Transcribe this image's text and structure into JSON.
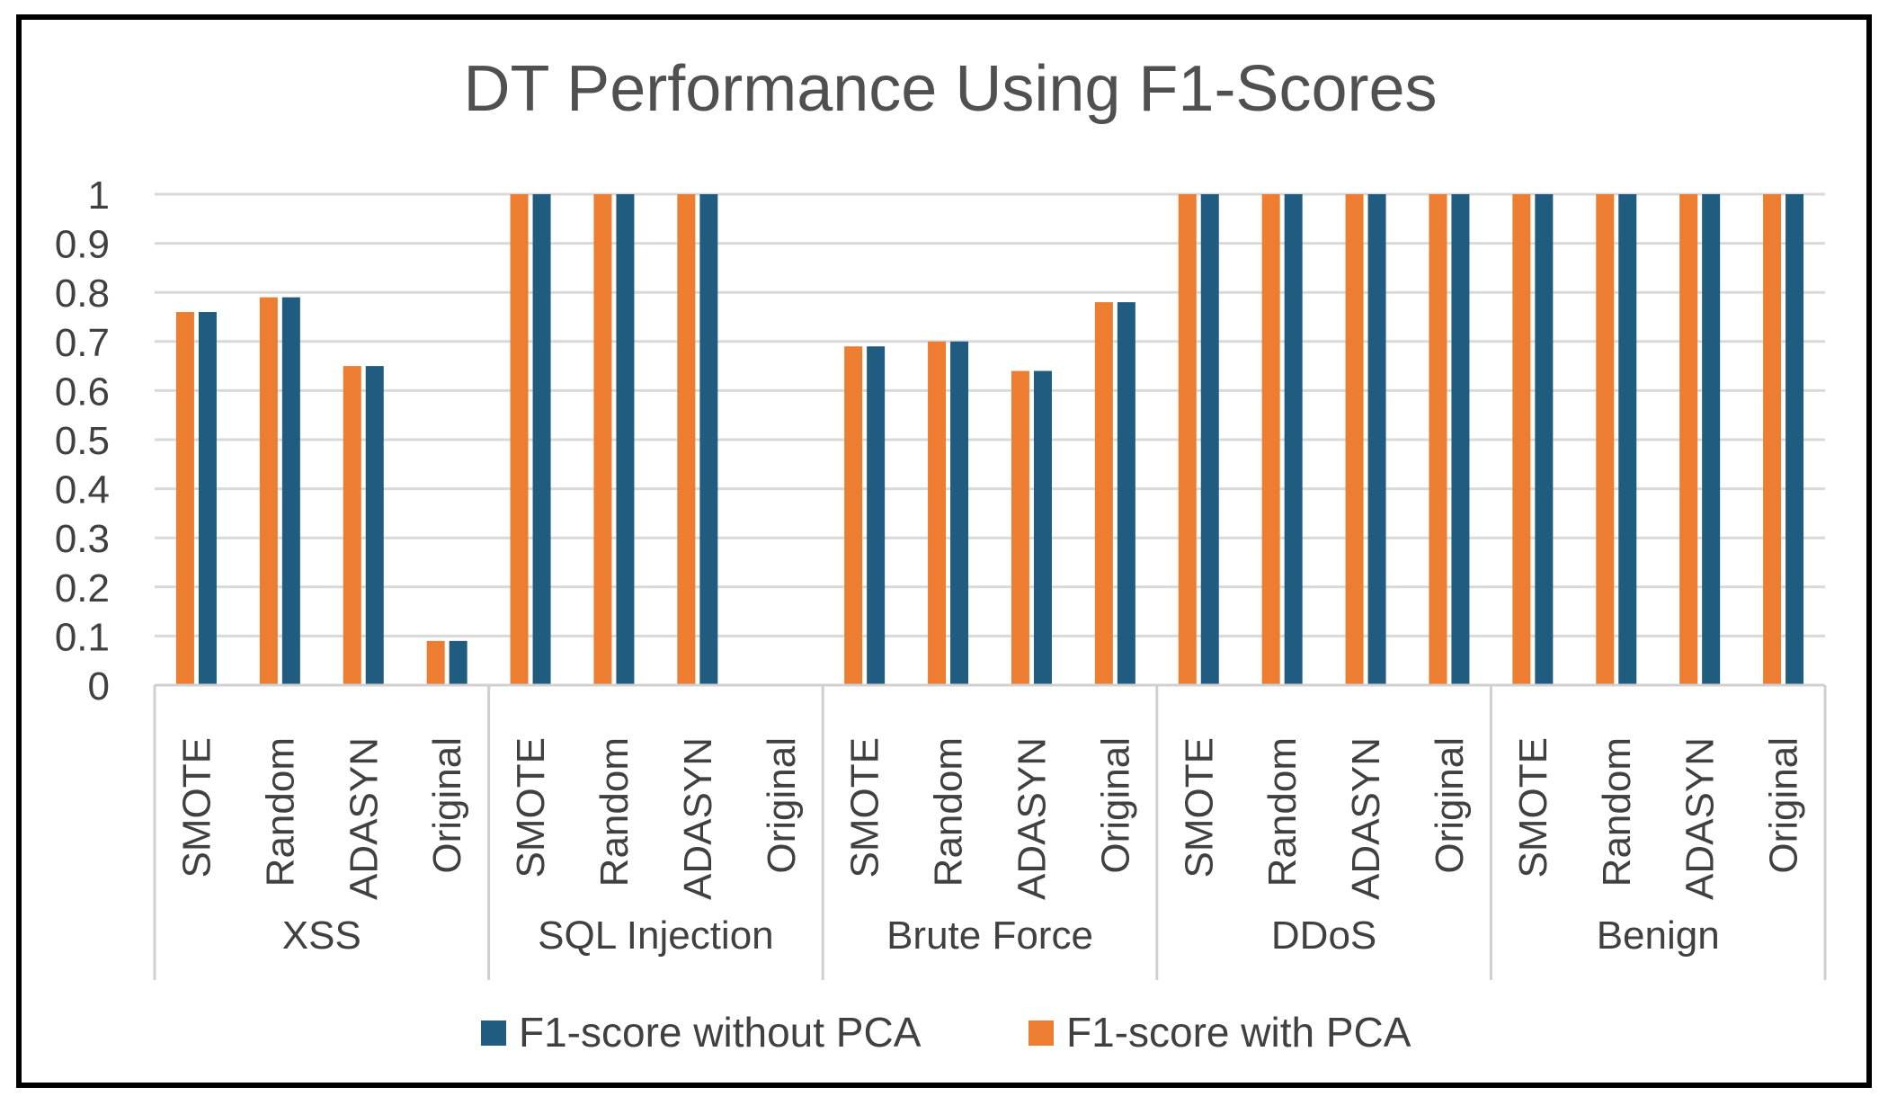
{
  "chart_data": {
    "type": "bar",
    "title": "DT Performance Using F1-Scores",
    "xlabel": "",
    "ylabel": "",
    "ylim": [
      0,
      1
    ],
    "y_ticks": [
      "0",
      "0.1",
      "0.2",
      "0.3",
      "0.4",
      "0.5",
      "0.6",
      "0.7",
      "0.8",
      "0.9",
      "1"
    ],
    "y_tick_values": [
      0,
      0.1,
      0.2,
      0.3,
      0.4,
      0.5,
      0.6,
      0.7,
      0.8,
      0.9,
      1
    ],
    "grid": true,
    "legend_position": "bottom",
    "groups": [
      {
        "label": "XSS",
        "categories": [
          "SMOTE",
          "Random",
          "ADASYN",
          "Original"
        ]
      },
      {
        "label": "SQL Injection",
        "categories": [
          "SMOTE",
          "Random",
          "ADASYN",
          "Original"
        ]
      },
      {
        "label": "Brute Force",
        "categories": [
          "SMOTE",
          "Random",
          "ADASYN",
          "Original"
        ]
      },
      {
        "label": "DDoS",
        "categories": [
          "SMOTE",
          "Random",
          "ADASYN",
          "Original"
        ]
      },
      {
        "label": "Benign",
        "categories": [
          "SMOTE",
          "Random",
          "ADASYN",
          "Original"
        ]
      }
    ],
    "series": [
      {
        "name": "F1-score with PCA",
        "color": "#ED7D31",
        "values": [
          0.76,
          0.79,
          0.65,
          0.09,
          1,
          1,
          1,
          0,
          0.69,
          0.7,
          0.64,
          0.78,
          1,
          1,
          1,
          1,
          1,
          1,
          1,
          1
        ]
      },
      {
        "name": "F1-score without PCA",
        "color": "#1F5C80",
        "values": [
          0.76,
          0.79,
          0.65,
          0.09,
          1,
          1,
          1,
          0,
          0.69,
          0.7,
          0.64,
          0.78,
          1,
          1,
          1,
          1,
          1,
          1,
          1,
          1
        ]
      }
    ],
    "legend": [
      {
        "name": "F1-score without PCA",
        "color": "#1F5C80"
      },
      {
        "name": "F1-score with PCA",
        "color": "#ED7D31"
      }
    ],
    "gridline_color": "#D9D9D9",
    "axis_color": "#D0D0D0"
  }
}
